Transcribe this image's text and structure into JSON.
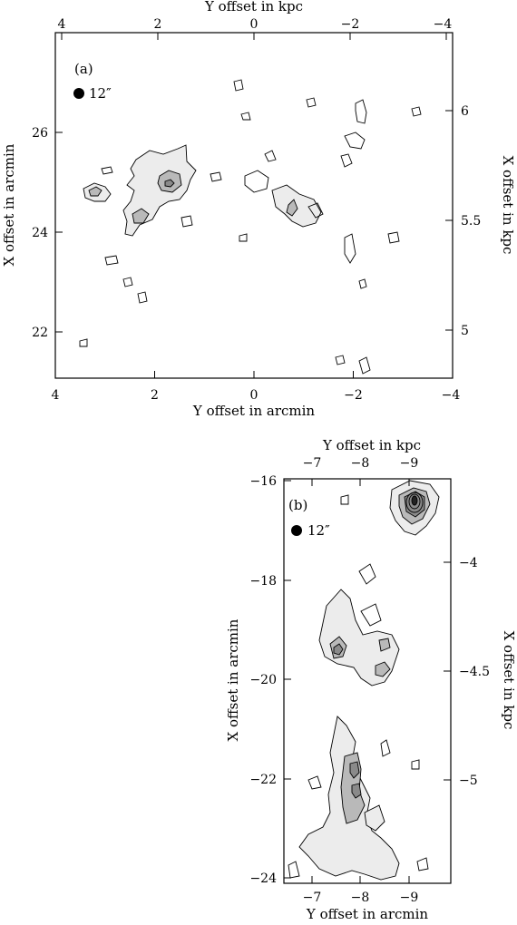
{
  "chart_data": [
    {
      "type": "contour",
      "panel_label": "(a)",
      "beam_label": "12″",
      "xlabel_bottom": "Y offset in arcmin",
      "xlabel_top": "Y offset in kpc",
      "ylabel_left": "X offset in arcmin",
      "ylabel_right": "X offset in kpc",
      "xlim_arcmin": [
        4,
        -4
      ],
      "ylim_arcmin": [
        21.0,
        27.8
      ],
      "xticks_bottom": [
        "4",
        "2",
        "0",
        "−2",
        "−4"
      ],
      "xticks_top": [
        "4",
        "2",
        "0",
        "−2",
        "−4"
      ],
      "yticks_left": [
        "22",
        "24",
        "26"
      ],
      "yticks_right": [
        "5",
        "5.5",
        "6"
      ],
      "contour_levels": 3,
      "peaks_arcmin": [
        {
          "y": 1.7,
          "x": 24.9
        },
        {
          "y": 2.1,
          "x": 24.3
        },
        {
          "y": 3.2,
          "x": 24.8
        },
        {
          "y": -0.8,
          "x": 24.5
        },
        {
          "y": -2.1,
          "x": 26.3
        }
      ]
    },
    {
      "type": "contour",
      "panel_label": "(b)",
      "beam_label": "12″",
      "xlabel_bottom": "Y offset in arcmin",
      "xlabel_top": "Y offset in kpc",
      "ylabel_left": "X offset in arcmin",
      "ylabel_right": "X offset in kpc",
      "xlim_arcmin": [
        -6.0,
        -9.6
      ],
      "ylim_arcmin": [
        -24.1,
        -15.9
      ],
      "xticks_bottom": [
        "−7",
        "−8",
        "−9"
      ],
      "xticks_top": [
        "−7",
        "−8",
        "−9"
      ],
      "yticks_left": [
        "−16",
        "−18",
        "−20",
        "−22",
        "−24"
      ],
      "yticks_right": [
        "−4",
        "−4.5",
        "−5"
      ],
      "contour_levels": 10,
      "peaks_arcmin": [
        {
          "y": -8.7,
          "x": -16.4
        },
        {
          "y": -6.9,
          "x": -19.5
        },
        {
          "y": -8.0,
          "x": -19.4
        },
        {
          "y": -8.3,
          "x": -19.8
        },
        {
          "y": -7.8,
          "x": -21.8
        },
        {
          "y": -7.8,
          "x": -22.3
        }
      ]
    }
  ]
}
